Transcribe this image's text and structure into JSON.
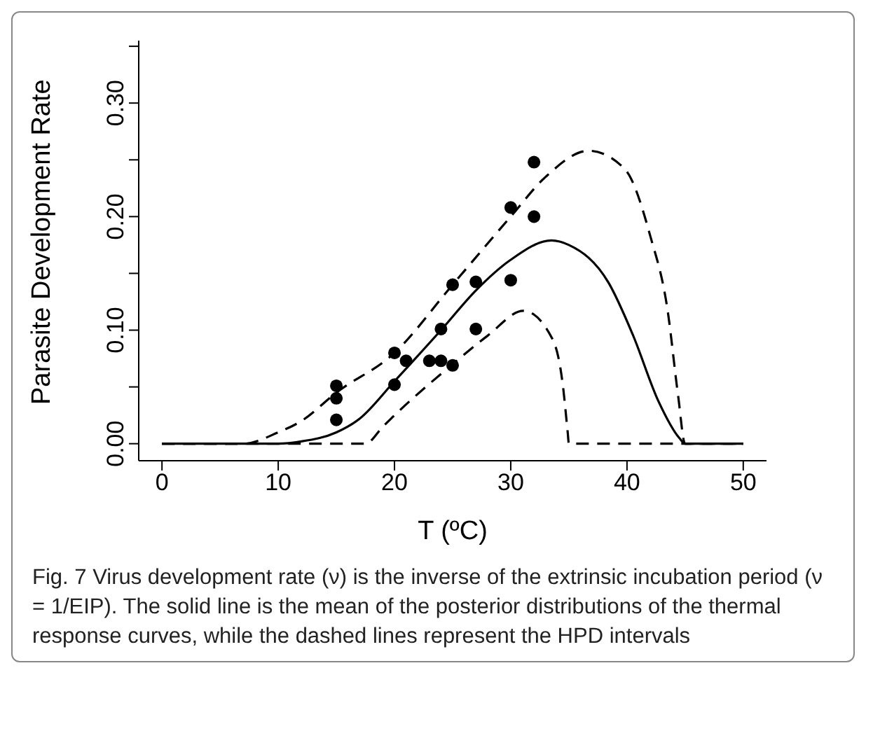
{
  "chart_data": {
    "type": "line",
    "xlabel": "T (ºC)",
    "ylabel": "Parasite Development Rate",
    "xlim": [
      -2,
      52
    ],
    "xticks": [
      0,
      10,
      20,
      30,
      40,
      50
    ],
    "ylim": [
      -0.015,
      0.355
    ],
    "yticks": [
      {
        "value": 0,
        "label": "0.00"
      },
      {
        "value": 0.05,
        "label": null
      },
      {
        "value": 0.1,
        "label": "0.10"
      },
      {
        "value": 0.15,
        "label": null
      },
      {
        "value": 0.2,
        "label": "0.20"
      },
      {
        "value": 0.25,
        "label": null
      },
      {
        "value": 0.3,
        "label": "0.30"
      },
      {
        "value": 0.35,
        "label": null
      }
    ],
    "grid": false,
    "series": [
      {
        "type": "scatter",
        "color": "#000000",
        "marker": "circle",
        "x": [
          15,
          15,
          15,
          20,
          20,
          21,
          23,
          24,
          24,
          25,
          25,
          27,
          27,
          30,
          30,
          32,
          32
        ],
        "values": [
          0.051,
          0.04,
          0.021,
          0.08,
          0.052,
          0.073,
          0.073,
          0.073,
          0.101,
          0.069,
          0.14,
          0.1425,
          0.101,
          0.144,
          0.208,
          0.2,
          0.248
        ]
      },
      {
        "color": "#000000",
        "line_style": "solid",
        "x": [
          0,
          10,
          12,
          15,
          17,
          20,
          24,
          27,
          30,
          33.5,
          35,
          38.4,
          40.5,
          42.7,
          44.5,
          45,
          50
        ],
        "values": [
          0,
          0,
          0.002,
          0.01,
          0.022,
          0.055,
          0.1,
          0.135,
          0.162,
          0.179,
          0.175,
          0.142,
          0.096,
          0.0375,
          0.005,
          0,
          0
        ]
      },
      {
        "color": "#000000",
        "line_style": "dashed",
        "x": [
          0,
          7,
          10,
          12,
          15,
          20,
          25,
          30,
          33,
          36.7,
          39.8,
          42,
          43.5,
          44.4,
          45,
          50
        ],
        "values": [
          0,
          0,
          0.01,
          0.02,
          0.045,
          0.08,
          0.14,
          0.2,
          0.235,
          0.258,
          0.242,
          0.183,
          0.117,
          0.042,
          0,
          0
        ]
      },
      {
        "color": "#000000",
        "line_style": "dashed",
        "x": [
          0,
          17.5,
          19,
          20,
          25,
          28,
          31.1,
          33.6,
          34.5,
          34.9,
          35,
          50
        ],
        "values": [
          0,
          0,
          0.015,
          0.025,
          0.07,
          0.095,
          0.117,
          0.092,
          0.05,
          0.01,
          0,
          0
        ]
      }
    ],
    "annotations": [
      "Fig. 7  Virus development rate (ν) is the inverse of the extrinsic incubation period (ν = 1/EIP). The solid line is the mean of the posterior distributions of the thermal response curves, while the dashed lines represent the HPD intervals"
    ]
  }
}
